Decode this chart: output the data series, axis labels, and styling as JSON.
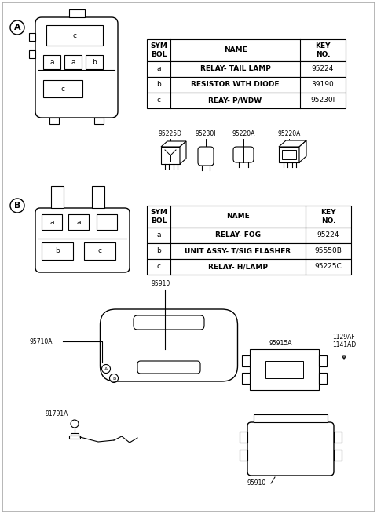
{
  "bg_color": "#ffffff",
  "table1": {
    "headers": [
      "SYM\nBOL",
      "NAME",
      "KEY\nNO."
    ],
    "rows": [
      [
        "a",
        "RELAY- TAIL LAMP",
        "95224"
      ],
      [
        "b",
        "RESISTOR WTH DIODE",
        "39190"
      ],
      [
        "c",
        "REAY- P/WDW",
        "95230I"
      ]
    ]
  },
  "table2": {
    "headers": [
      "SYM\nBOL",
      "NAME",
      "KEY\nNO."
    ],
    "rows": [
      [
        "a",
        "RELAY- FOG",
        "95224"
      ],
      [
        "b",
        "UNIT ASSY- T/SIG FLASHER",
        "95550B"
      ],
      [
        "c",
        "RELAY- H/LAMP",
        "95225C"
      ]
    ]
  },
  "relay_labels": [
    "95225D",
    "95230I",
    "95220A",
    "95220A"
  ],
  "part_labels": {
    "95910_top": "95910",
    "95710A": "95710A",
    "91791A": "91791A",
    "95915A": "95915A",
    "1129AF": "1129AF",
    "1141AD": "1141AD",
    "95910_bot": "95910",
    "circA": "A",
    "circB": "B"
  }
}
